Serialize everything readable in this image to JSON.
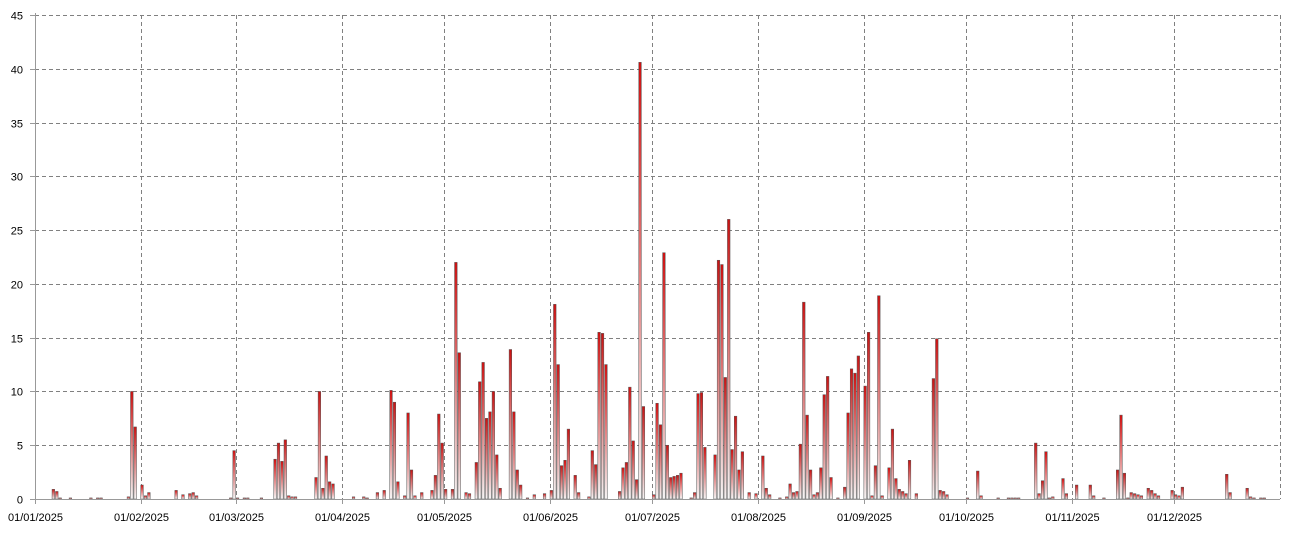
{
  "chart_data": {
    "type": "bar",
    "title": "",
    "xlabel": "",
    "ylabel": "",
    "ylim": [
      0,
      45
    ],
    "yticks": [
      0,
      5,
      10,
      15,
      20,
      25,
      30,
      35,
      40,
      45
    ],
    "xlim": [
      "2025-01-01",
      "2026-01-01"
    ],
    "xticks": [
      "01/01/2025",
      "01/02/2025",
      "01/03/2025",
      "01/04/2025",
      "01/05/2025",
      "01/06/2025",
      "01/07/2025",
      "01/08/2025",
      "01/09/2025",
      "01/10/2025",
      "01/11/2025",
      "01/12/2025"
    ],
    "grid": true,
    "legend": "none",
    "bar_color_top": "#cc1111",
    "bar_color_bottom": "#f5f5f5",
    "points": [
      [
        "2025-01-06",
        0.9
      ],
      [
        "2025-01-07",
        0.7
      ],
      [
        "2025-01-08",
        0.1
      ],
      [
        "2025-01-11",
        0.1
      ],
      [
        "2025-01-17",
        0.1
      ],
      [
        "2025-01-19",
        0.1
      ],
      [
        "2025-01-20",
        0.1
      ],
      [
        "2025-01-28",
        0.2
      ],
      [
        "2025-01-29",
        10.0
      ],
      [
        "2025-01-30",
        6.7
      ],
      [
        "2025-02-01",
        1.3
      ],
      [
        "2025-02-02",
        0.3
      ],
      [
        "2025-02-03",
        0.6
      ],
      [
        "2025-02-11",
        0.8
      ],
      [
        "2025-02-13",
        0.4
      ],
      [
        "2025-02-15",
        0.5
      ],
      [
        "2025-02-16",
        0.6
      ],
      [
        "2025-02-17",
        0.3
      ],
      [
        "2025-02-27",
        0.1
      ],
      [
        "2025-02-28",
        4.5
      ],
      [
        "2025-03-01",
        0.1
      ],
      [
        "2025-03-03",
        0.1
      ],
      [
        "2025-03-04",
        0.1
      ],
      [
        "2025-03-08",
        0.1
      ],
      [
        "2025-03-12",
        3.7
      ],
      [
        "2025-03-13",
        5.2
      ],
      [
        "2025-03-14",
        3.5
      ],
      [
        "2025-03-15",
        5.5
      ],
      [
        "2025-03-16",
        0.3
      ],
      [
        "2025-03-17",
        0.2
      ],
      [
        "2025-03-18",
        0.2
      ],
      [
        "2025-03-24",
        2.0
      ],
      [
        "2025-03-25",
        10.0
      ],
      [
        "2025-03-26",
        1.0
      ],
      [
        "2025-03-27",
        4.0
      ],
      [
        "2025-03-28",
        1.6
      ],
      [
        "2025-03-29",
        1.4
      ],
      [
        "2025-04-04",
        0.2
      ],
      [
        "2025-04-07",
        0.2
      ],
      [
        "2025-04-08",
        0.1
      ],
      [
        "2025-04-11",
        0.6
      ],
      [
        "2025-04-13",
        0.8
      ],
      [
        "2025-04-15",
        10.1
      ],
      [
        "2025-04-16",
        9.0
      ],
      [
        "2025-04-17",
        1.6
      ],
      [
        "2025-04-19",
        0.3
      ],
      [
        "2025-04-20",
        8.0
      ],
      [
        "2025-04-21",
        2.7
      ],
      [
        "2025-04-22",
        0.3
      ],
      [
        "2025-04-24",
        0.6
      ],
      [
        "2025-04-27",
        0.8
      ],
      [
        "2025-04-28",
        2.2
      ],
      [
        "2025-04-29",
        7.9
      ],
      [
        "2025-04-30",
        5.2
      ],
      [
        "2025-05-01",
        0.9
      ],
      [
        "2025-05-03",
        0.9
      ],
      [
        "2025-05-04",
        22.0
      ],
      [
        "2025-05-05",
        13.6
      ],
      [
        "2025-05-07",
        0.6
      ],
      [
        "2025-05-08",
        0.5
      ],
      [
        "2025-05-10",
        3.4
      ],
      [
        "2025-05-11",
        10.9
      ],
      [
        "2025-05-12",
        12.7
      ],
      [
        "2025-05-13",
        7.5
      ],
      [
        "2025-05-14",
        8.1
      ],
      [
        "2025-05-15",
        10.0
      ],
      [
        "2025-05-16",
        4.1
      ],
      [
        "2025-05-17",
        1.0
      ],
      [
        "2025-05-20",
        13.9
      ],
      [
        "2025-05-21",
        8.1
      ],
      [
        "2025-05-22",
        2.7
      ],
      [
        "2025-05-23",
        1.3
      ],
      [
        "2025-05-25",
        0.1
      ],
      [
        "2025-05-27",
        0.4
      ],
      [
        "2025-05-30",
        0.5
      ],
      [
        "2025-06-01",
        0.8
      ],
      [
        "2025-06-02",
        18.1
      ],
      [
        "2025-06-03",
        12.5
      ],
      [
        "2025-06-04",
        3.1
      ],
      [
        "2025-06-05",
        3.6
      ],
      [
        "2025-06-06",
        6.5
      ],
      [
        "2025-06-08",
        2.2
      ],
      [
        "2025-06-09",
        0.6
      ],
      [
        "2025-06-12",
        0.2
      ],
      [
        "2025-06-13",
        4.5
      ],
      [
        "2025-06-14",
        3.2
      ],
      [
        "2025-06-15",
        15.5
      ],
      [
        "2025-06-16",
        15.4
      ],
      [
        "2025-06-17",
        12.5
      ],
      [
        "2025-06-21",
        0.7
      ],
      [
        "2025-06-22",
        2.9
      ],
      [
        "2025-06-23",
        3.4
      ],
      [
        "2025-06-24",
        10.4
      ],
      [
        "2025-06-25",
        5.4
      ],
      [
        "2025-06-26",
        1.8
      ],
      [
        "2025-06-27",
        40.6
      ],
      [
        "2025-06-28",
        8.6
      ],
      [
        "2025-07-01",
        0.4
      ],
      [
        "2025-07-02",
        8.9
      ],
      [
        "2025-07-03",
        6.9
      ],
      [
        "2025-07-04",
        22.9
      ],
      [
        "2025-07-05",
        5.0
      ],
      [
        "2025-07-06",
        2.0
      ],
      [
        "2025-07-07",
        2.1
      ],
      [
        "2025-07-08",
        2.2
      ],
      [
        "2025-07-09",
        2.4
      ],
      [
        "2025-07-12",
        0.1
      ],
      [
        "2025-07-13",
        0.6
      ],
      [
        "2025-07-14",
        9.8
      ],
      [
        "2025-07-15",
        9.9
      ],
      [
        "2025-07-16",
        4.8
      ],
      [
        "2025-07-19",
        4.1
      ],
      [
        "2025-07-20",
        22.2
      ],
      [
        "2025-07-21",
        21.8
      ],
      [
        "2025-07-22",
        11.3
      ],
      [
        "2025-07-23",
        26.0
      ],
      [
        "2025-07-24",
        4.6
      ],
      [
        "2025-07-25",
        7.7
      ],
      [
        "2025-07-26",
        2.7
      ],
      [
        "2025-07-27",
        4.4
      ],
      [
        "2025-07-29",
        0.6
      ],
      [
        "2025-07-31",
        0.5
      ],
      [
        "2025-08-02",
        4.0
      ],
      [
        "2025-08-03",
        1.0
      ],
      [
        "2025-08-04",
        0.4
      ],
      [
        "2025-08-07",
        0.1
      ],
      [
        "2025-08-09",
        0.2
      ],
      [
        "2025-08-10",
        1.4
      ],
      [
        "2025-08-11",
        0.6
      ],
      [
        "2025-08-12",
        0.7
      ],
      [
        "2025-08-13",
        5.1
      ],
      [
        "2025-08-14",
        18.3
      ],
      [
        "2025-08-15",
        7.8
      ],
      [
        "2025-08-16",
        2.7
      ],
      [
        "2025-08-17",
        0.4
      ],
      [
        "2025-08-18",
        0.6
      ],
      [
        "2025-08-19",
        2.9
      ],
      [
        "2025-08-20",
        9.7
      ],
      [
        "2025-08-21",
        11.4
      ],
      [
        "2025-08-22",
        2.0
      ],
      [
        "2025-08-24",
        0.1
      ],
      [
        "2025-08-26",
        1.1
      ],
      [
        "2025-08-27",
        8.0
      ],
      [
        "2025-08-28",
        12.1
      ],
      [
        "2025-08-29",
        11.7
      ],
      [
        "2025-08-30",
        13.3
      ],
      [
        "2025-09-01",
        10.5
      ],
      [
        "2025-09-02",
        15.5
      ],
      [
        "2025-09-03",
        0.3
      ],
      [
        "2025-09-04",
        3.1
      ],
      [
        "2025-09-05",
        18.9
      ],
      [
        "2025-09-06",
        0.3
      ],
      [
        "2025-09-08",
        2.9
      ],
      [
        "2025-09-09",
        6.5
      ],
      [
        "2025-09-10",
        1.9
      ],
      [
        "2025-09-11",
        0.9
      ],
      [
        "2025-09-12",
        0.7
      ],
      [
        "2025-09-13",
        0.5
      ],
      [
        "2025-09-14",
        3.6
      ],
      [
        "2025-09-16",
        0.5
      ],
      [
        "2025-09-21",
        11.2
      ],
      [
        "2025-09-22",
        14.9
      ],
      [
        "2025-09-23",
        0.8
      ],
      [
        "2025-09-24",
        0.7
      ],
      [
        "2025-09-25",
        0.4
      ],
      [
        "2025-10-01",
        0.1
      ],
      [
        "2025-10-04",
        2.6
      ],
      [
        "2025-10-05",
        0.3
      ],
      [
        "2025-10-10",
        0.1
      ],
      [
        "2025-10-13",
        0.1
      ],
      [
        "2025-10-14",
        0.1
      ],
      [
        "2025-10-15",
        0.1
      ],
      [
        "2025-10-16",
        0.1
      ],
      [
        "2025-10-21",
        5.2
      ],
      [
        "2025-10-22",
        0.5
      ],
      [
        "2025-10-23",
        1.7
      ],
      [
        "2025-10-24",
        4.4
      ],
      [
        "2025-10-25",
        0.1
      ],
      [
        "2025-10-26",
        0.2
      ],
      [
        "2025-10-29",
        1.9
      ],
      [
        "2025-10-30",
        0.5
      ],
      [
        "2025-11-02",
        1.3
      ],
      [
        "2025-11-06",
        1.3
      ],
      [
        "2025-11-07",
        0.3
      ],
      [
        "2025-11-10",
        0.1
      ],
      [
        "2025-11-14",
        2.7
      ],
      [
        "2025-11-15",
        7.8
      ],
      [
        "2025-11-16",
        2.4
      ],
      [
        "2025-11-17",
        0.1
      ],
      [
        "2025-11-18",
        0.6
      ],
      [
        "2025-11-19",
        0.5
      ],
      [
        "2025-11-20",
        0.4
      ],
      [
        "2025-11-21",
        0.3
      ],
      [
        "2025-11-23",
        1.0
      ],
      [
        "2025-11-24",
        0.8
      ],
      [
        "2025-11-25",
        0.5
      ],
      [
        "2025-11-26",
        0.3
      ],
      [
        "2025-11-30",
        0.8
      ],
      [
        "2025-12-01",
        0.4
      ],
      [
        "2025-12-02",
        0.3
      ],
      [
        "2025-12-03",
        1.1
      ],
      [
        "2025-12-16",
        2.3
      ],
      [
        "2025-12-17",
        0.6
      ],
      [
        "2025-12-22",
        1.0
      ],
      [
        "2025-12-23",
        0.2
      ],
      [
        "2025-12-24",
        0.1
      ],
      [
        "2025-12-26",
        0.1
      ],
      [
        "2025-12-27",
        0.1
      ]
    ]
  }
}
